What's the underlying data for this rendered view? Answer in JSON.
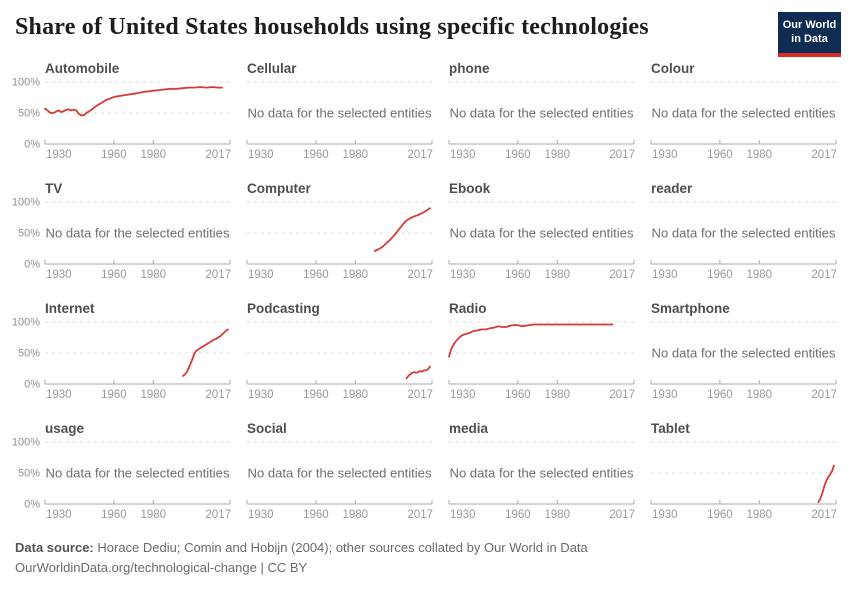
{
  "header": {
    "title": "Share of United States households using specific technologies",
    "logo_line1": "Our World",
    "logo_line2": "in Data"
  },
  "footer": {
    "source_label": "Data source:",
    "source_text": "Horace Dediu; Comin and Hobijn (2004); other sources collated by Our World in Data",
    "url_line": "OurWorldinData.org/technological-change | CC BY"
  },
  "colors": {
    "line": "#d73a35",
    "grid": "#dcdcdc",
    "axis": "#a9a9a9",
    "tick_label": "#999999",
    "y_label": "#8f8f8f",
    "panel_title": "#4f4f4f",
    "no_data": "#6e6e6e",
    "title": "#1d1d1d",
    "footer": "#6a6a6a",
    "logo_bg": "#0f2d52",
    "logo_red": "#dc2d25"
  },
  "chart_data": {
    "type": "line",
    "layout": "small-multiples-4x4",
    "grid": "dashed-horizontal",
    "legend": "none",
    "x_domain": [
      1925,
      2019
    ],
    "x_tick_years": [
      1930,
      1960,
      1980,
      2017
    ],
    "x_tick_labels": [
      "1930",
      "1960",
      "1980",
      "2017"
    ],
    "interior_tick_years": [
      1960,
      1980
    ],
    "y_domain": [
      0,
      100
    ],
    "y_tick_labels": [
      "100%",
      "50%",
      "0%"
    ],
    "y_tick_values": [
      100,
      50,
      0
    ],
    "no_data_text": "No data for the selected entities",
    "facets": [
      {
        "title": "Automobile",
        "no_data": false,
        "points": [
          [
            1925,
            57
          ],
          [
            1926,
            55
          ],
          [
            1927,
            52
          ],
          [
            1928,
            50
          ],
          [
            1929,
            50
          ],
          [
            1930,
            51
          ],
          [
            1931,
            53
          ],
          [
            1932,
            54
          ],
          [
            1933,
            52
          ],
          [
            1934,
            52
          ],
          [
            1935,
            54
          ],
          [
            1936,
            55
          ],
          [
            1937,
            56
          ],
          [
            1938,
            54
          ],
          [
            1939,
            55
          ],
          [
            1940,
            55
          ],
          [
            1941,
            54
          ],
          [
            1942,
            49
          ],
          [
            1943,
            47
          ],
          [
            1944,
            46
          ],
          [
            1945,
            47
          ],
          [
            1946,
            50
          ],
          [
            1947,
            52
          ],
          [
            1948,
            54
          ],
          [
            1949,
            56
          ],
          [
            1950,
            59
          ],
          [
            1952,
            63
          ],
          [
            1954,
            67
          ],
          [
            1956,
            71
          ],
          [
            1958,
            73
          ],
          [
            1960,
            76
          ],
          [
            1962,
            77
          ],
          [
            1964,
            78
          ],
          [
            1966,
            79
          ],
          [
            1968,
            80
          ],
          [
            1970,
            81
          ],
          [
            1972,
            82
          ],
          [
            1975,
            84
          ],
          [
            1978,
            85
          ],
          [
            1980,
            86
          ],
          [
            1983,
            87
          ],
          [
            1986,
            88
          ],
          [
            1989,
            89
          ],
          [
            1992,
            89
          ],
          [
            1995,
            90
          ],
          [
            1998,
            91
          ],
          [
            2001,
            91
          ],
          [
            2004,
            92
          ],
          [
            2007,
            91
          ],
          [
            2010,
            92
          ],
          [
            2013,
            91
          ],
          [
            2015,
            91
          ]
        ]
      },
      {
        "title": "Cellular",
        "no_data": true
      },
      {
        "title": "phone",
        "no_data": true
      },
      {
        "title": "Colour",
        "no_data": true
      },
      {
        "title": "TV",
        "no_data": true
      },
      {
        "title": "Computer",
        "no_data": false,
        "points": [
          [
            1990,
            21
          ],
          [
            1992,
            24
          ],
          [
            1994,
            28
          ],
          [
            1996,
            34
          ],
          [
            1998,
            40
          ],
          [
            2000,
            47
          ],
          [
            2002,
            55
          ],
          [
            2004,
            63
          ],
          [
            2006,
            70
          ],
          [
            2008,
            74
          ],
          [
            2010,
            77
          ],
          [
            2012,
            79
          ],
          [
            2014,
            82
          ],
          [
            2016,
            86
          ],
          [
            2018,
            90
          ]
        ]
      },
      {
        "title": "Ebook",
        "no_data": true
      },
      {
        "title": "reader",
        "no_data": true
      },
      {
        "title": "Internet",
        "no_data": false,
        "points": [
          [
            1995,
            13
          ],
          [
            1996,
            15
          ],
          [
            1997,
            19
          ],
          [
            1998,
            26
          ],
          [
            1999,
            33
          ],
          [
            2000,
            41
          ],
          [
            2001,
            50
          ],
          [
            2002,
            54
          ],
          [
            2004,
            58
          ],
          [
            2006,
            62
          ],
          [
            2008,
            66
          ],
          [
            2010,
            70
          ],
          [
            2012,
            73
          ],
          [
            2014,
            77
          ],
          [
            2015,
            80
          ],
          [
            2016,
            83
          ],
          [
            2017,
            86
          ],
          [
            2018,
            88
          ]
        ]
      },
      {
        "title": "Podcasting",
        "no_data": false,
        "points": [
          [
            2006,
            9
          ],
          [
            2007,
            13
          ],
          [
            2008,
            16
          ],
          [
            2009,
            18
          ],
          [
            2010,
            19
          ],
          [
            2011,
            18
          ],
          [
            2012,
            19
          ],
          [
            2013,
            21
          ],
          [
            2014,
            20
          ],
          [
            2015,
            22
          ],
          [
            2016,
            22
          ],
          [
            2017,
            24
          ],
          [
            2018,
            28
          ]
        ]
      },
      {
        "title": "Radio",
        "no_data": false,
        "points": [
          [
            1925,
            44
          ],
          [
            1926,
            55
          ],
          [
            1927,
            62
          ],
          [
            1928,
            67
          ],
          [
            1929,
            71
          ],
          [
            1930,
            74
          ],
          [
            1931,
            77
          ],
          [
            1932,
            79
          ],
          [
            1933,
            80
          ],
          [
            1934,
            81
          ],
          [
            1935,
            82
          ],
          [
            1936,
            83
          ],
          [
            1937,
            85
          ],
          [
            1938,
            86
          ],
          [
            1939,
            86
          ],
          [
            1940,
            87
          ],
          [
            1942,
            88
          ],
          [
            1944,
            88
          ],
          [
            1946,
            90
          ],
          [
            1948,
            91
          ],
          [
            1950,
            93
          ],
          [
            1952,
            92
          ],
          [
            1954,
            92
          ],
          [
            1956,
            94
          ],
          [
            1958,
            95
          ],
          [
            1960,
            95
          ],
          [
            1962,
            93
          ],
          [
            1964,
            94
          ],
          [
            1966,
            95
          ],
          [
            1968,
            96
          ],
          [
            1970,
            96
          ],
          [
            1975,
            96
          ],
          [
            1980,
            96
          ],
          [
            1985,
            96
          ],
          [
            1990,
            96
          ],
          [
            1995,
            96
          ],
          [
            2000,
            96
          ],
          [
            2005,
            96
          ],
          [
            2008,
            96
          ]
        ]
      },
      {
        "title": "Smartphone",
        "no_data": true
      },
      {
        "title": "usage",
        "no_data": true
      },
      {
        "title": "Social",
        "no_data": true
      },
      {
        "title": "media",
        "no_data": true
      },
      {
        "title": "Tablet",
        "no_data": false,
        "points": [
          [
            2010,
            3
          ],
          [
            2011,
            8
          ],
          [
            2012,
            17
          ],
          [
            2013,
            28
          ],
          [
            2014,
            37
          ],
          [
            2015,
            43
          ],
          [
            2016,
            48
          ],
          [
            2017,
            53
          ],
          [
            2018,
            62
          ]
        ]
      }
    ]
  }
}
